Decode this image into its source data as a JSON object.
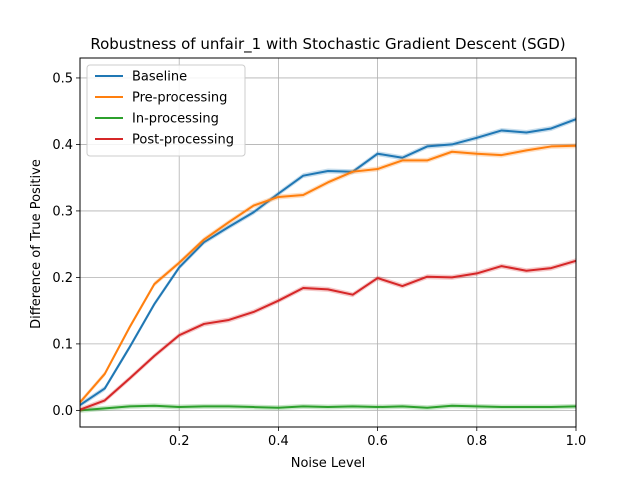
{
  "chart_data": {
    "type": "line",
    "title": "Robustness of unfair_1 with Stochastic Gradient Descent (SGD)",
    "xlabel": "Noise Level",
    "ylabel": "Difference of True Positive",
    "xlim": [
      0.0,
      1.0
    ],
    "ylim": [
      -0.025,
      0.53
    ],
    "xticks": [
      0.2,
      0.4,
      0.6,
      0.8,
      1.0
    ],
    "xtick_labels": [
      "0.2",
      "0.4",
      "0.6",
      "0.8",
      "1.0"
    ],
    "yticks": [
      0.0,
      0.1,
      0.2,
      0.3,
      0.4,
      0.5
    ],
    "ytick_labels": [
      "0.0",
      "0.1",
      "0.2",
      "0.3",
      "0.4",
      "0.5"
    ],
    "grid": true,
    "legend_position": "top-left",
    "x": [
      0.0,
      0.05,
      0.1,
      0.15,
      0.2,
      0.25,
      0.3,
      0.35,
      0.4,
      0.45,
      0.5,
      0.55,
      0.6,
      0.65,
      0.7,
      0.75,
      0.8,
      0.85,
      0.9,
      0.95,
      1.0
    ],
    "series": [
      {
        "name": "Baseline",
        "color": "#1f77b4",
        "values": [
          0.008,
          0.033,
          0.095,
          0.16,
          0.215,
          0.253,
          0.276,
          0.298,
          0.326,
          0.353,
          0.36,
          0.359,
          0.386,
          0.38,
          0.397,
          0.4,
          0.41,
          0.421,
          0.418,
          0.424,
          0.438
        ]
      },
      {
        "name": "Pre-processing",
        "color": "#ff7f0e",
        "values": [
          0.012,
          0.055,
          0.125,
          0.19,
          0.222,
          0.257,
          0.283,
          0.308,
          0.321,
          0.324,
          0.343,
          0.359,
          0.363,
          0.376,
          0.376,
          0.389,
          0.386,
          0.384,
          0.391,
          0.397,
          0.398
        ]
      },
      {
        "name": "In-processing",
        "color": "#2ca02c",
        "values": [
          0.0,
          0.003,
          0.006,
          0.007,
          0.005,
          0.006,
          0.006,
          0.005,
          0.004,
          0.006,
          0.005,
          0.006,
          0.005,
          0.006,
          0.004,
          0.007,
          0.006,
          0.005,
          0.005,
          0.005,
          0.006
        ]
      },
      {
        "name": "Post-processing",
        "color": "#d62728",
        "values": [
          0.001,
          0.015,
          0.048,
          0.082,
          0.113,
          0.13,
          0.136,
          0.148,
          0.165,
          0.184,
          0.182,
          0.174,
          0.199,
          0.187,
          0.201,
          0.2,
          0.206,
          0.217,
          0.21,
          0.214,
          0.225
        ]
      }
    ]
  }
}
